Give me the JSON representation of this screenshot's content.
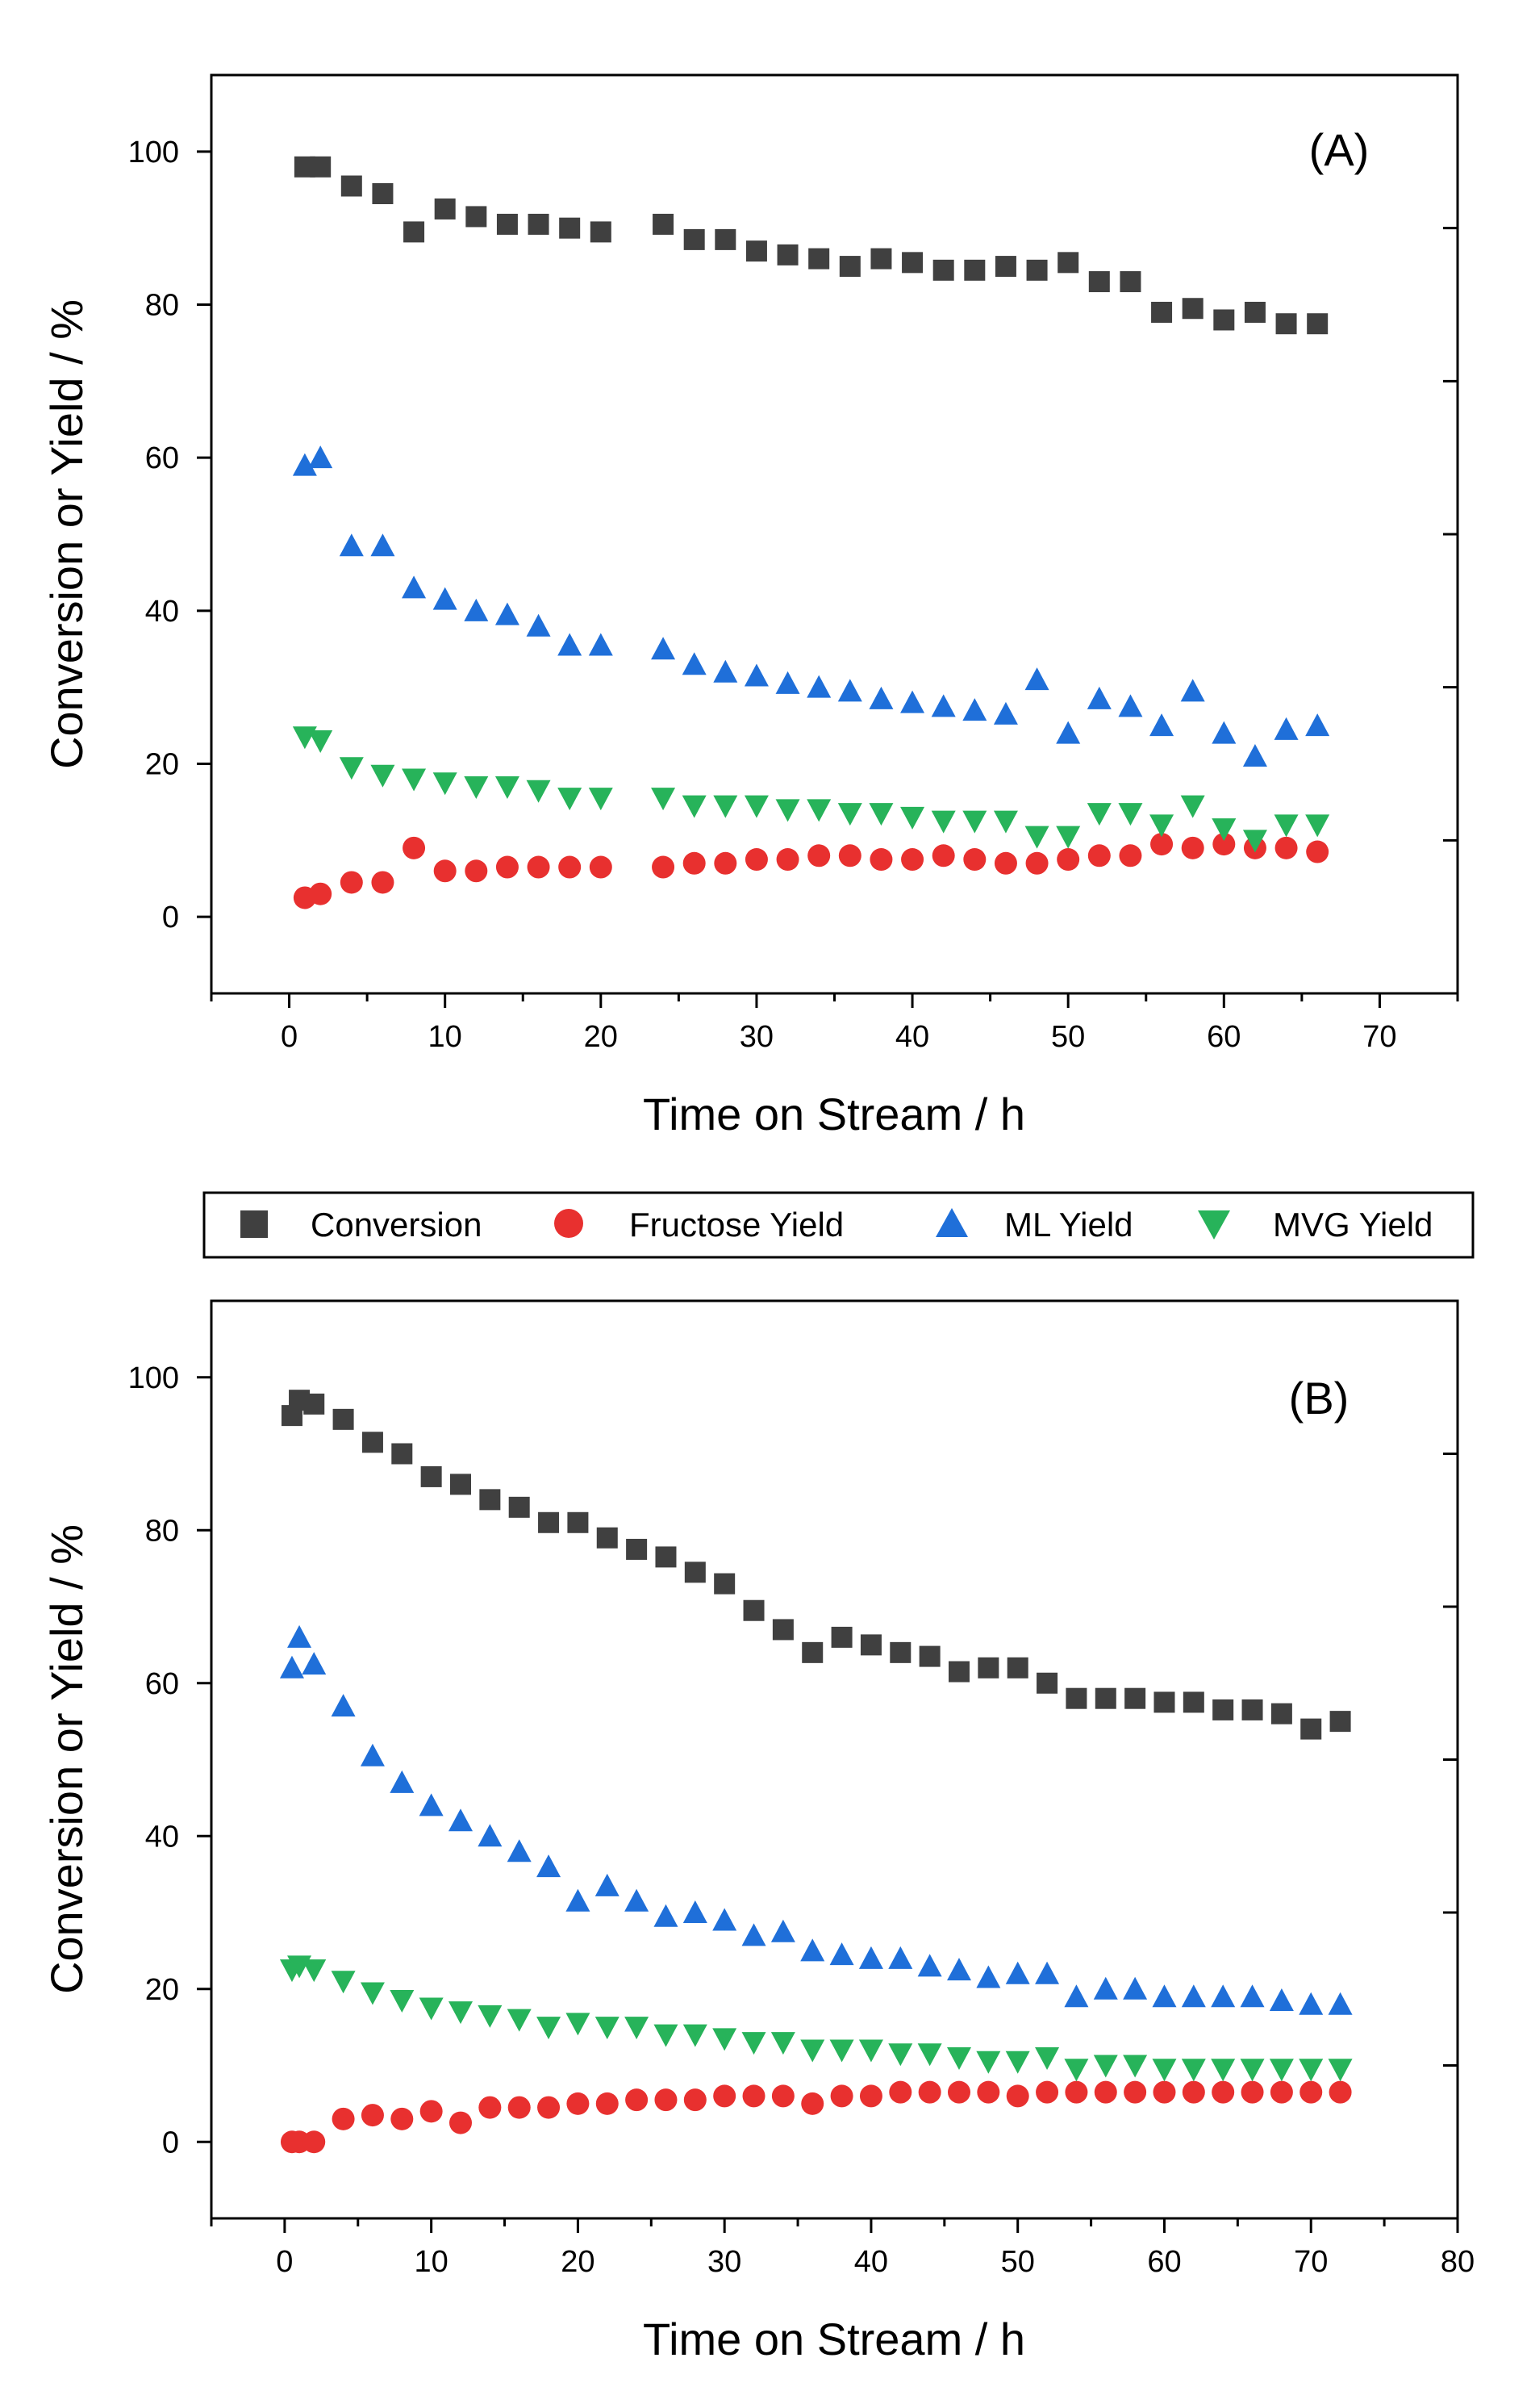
{
  "colors": {
    "conversion": "#404040",
    "fructose": "#e8302f",
    "ml": "#1f6fd9",
    "mvg": "#27b35a"
  },
  "legend": {
    "items": [
      {
        "name": "Conversion",
        "symbol": "square",
        "color": "#404040"
      },
      {
        "name": "Fructose Yield",
        "symbol": "circle",
        "color": "#e8302f"
      },
      {
        "name": "ML Yield",
        "symbol": "triangle-up",
        "color": "#1f6fd9"
      },
      {
        "name": "MVG Yield",
        "symbol": "triangle-down",
        "color": "#27b35a"
      }
    ]
  },
  "chart_data": [
    {
      "type": "scatter",
      "panel_label": "(A)",
      "xlabel": "Time on Stream / h",
      "ylabel": "Conversion or Yield / %",
      "xlim": [
        -5,
        75
      ],
      "ylim": [
        -10,
        110
      ],
      "xticks": [
        0,
        10,
        20,
        30,
        40,
        50,
        60,
        70
      ],
      "yticks": [
        0,
        20,
        40,
        60,
        80,
        100
      ],
      "series": [
        {
          "name": "Conversion",
          "x": [
            1,
            2,
            4,
            6,
            8,
            10,
            12,
            14,
            16,
            18,
            20,
            24,
            26,
            28,
            30,
            32,
            34,
            36,
            38,
            40,
            42,
            44,
            46,
            48,
            50,
            52,
            54,
            56,
            58,
            60,
            62,
            64,
            66
          ],
          "y": [
            98,
            98,
            95.5,
            94.5,
            89.5,
            92.5,
            91.5,
            90.5,
            90.5,
            90,
            89.5,
            90.5,
            88.5,
            88.5,
            87,
            86.5,
            86,
            85,
            86,
            85.5,
            84.5,
            84.5,
            85,
            84.5,
            85.5,
            83,
            83,
            79,
            79.5,
            78,
            79,
            77.5,
            77.5
          ]
        },
        {
          "name": "Fructose Yield",
          "x": [
            1,
            2,
            4,
            6,
            8,
            10,
            12,
            14,
            16,
            18,
            20,
            24,
            26,
            28,
            30,
            32,
            34,
            36,
            38,
            40,
            42,
            44,
            46,
            48,
            50,
            52,
            54,
            56,
            58,
            60,
            62,
            64,
            66
          ],
          "y": [
            2.5,
            3,
            4.5,
            4.5,
            9,
            6,
            6,
            6.5,
            6.5,
            6.5,
            6.5,
            6.5,
            7,
            7,
            7.5,
            7.5,
            8,
            8,
            7.5,
            7.5,
            8,
            7.5,
            7,
            7,
            7.5,
            8,
            8,
            9.5,
            9,
            9.5,
            9,
            9,
            8.5
          ]
        },
        {
          "name": "ML Yield",
          "x": [
            1,
            2,
            4,
            6,
            8,
            10,
            12,
            14,
            16,
            18,
            20,
            24,
            26,
            28,
            30,
            32,
            34,
            36,
            38,
            40,
            42,
            44,
            46,
            48,
            50,
            52,
            54,
            56,
            58,
            60,
            62,
            64,
            66
          ],
          "y": [
            59,
            60,
            48.5,
            48.5,
            43,
            41.5,
            40,
            39.5,
            38,
            35.5,
            35.5,
            35,
            33,
            32,
            31.5,
            30.5,
            30,
            29.5,
            28.5,
            28,
            27.5,
            27,
            26.5,
            31,
            24,
            28.5,
            27.5,
            25,
            29.5,
            24,
            21,
            24.5,
            25
          ]
        },
        {
          "name": "MVG Yield",
          "x": [
            1,
            2,
            4,
            6,
            8,
            10,
            12,
            14,
            16,
            18,
            20,
            24,
            26,
            28,
            30,
            32,
            34,
            36,
            38,
            40,
            42,
            44,
            46,
            48,
            50,
            52,
            54,
            56,
            58,
            60,
            62,
            64,
            66
          ],
          "y": [
            23.5,
            23,
            19.5,
            18.5,
            18,
            17.5,
            17,
            17,
            16.5,
            15.5,
            15.5,
            15.5,
            14.5,
            14.5,
            14.5,
            14,
            14,
            13.5,
            13.5,
            13,
            12.5,
            12.5,
            12.5,
            10.5,
            10.5,
            13.5,
            13.5,
            12,
            14.5,
            11.5,
            10,
            12,
            12
          ]
        }
      ]
    },
    {
      "type": "scatter",
      "panel_label": "(B)",
      "xlabel": "Time on Stream / h",
      "ylabel": "Conversion or Yield / %",
      "xlim": [
        -5,
        80
      ],
      "ylim": [
        -10,
        110
      ],
      "xticks": [
        0,
        10,
        20,
        30,
        40,
        50,
        60,
        70,
        80
      ],
      "yticks": [
        0,
        20,
        40,
        60,
        80,
        100
      ],
      "series": [
        {
          "name": "Conversion",
          "x": [
            0.5,
            1,
            2,
            4,
            6,
            8,
            10,
            12,
            14,
            16,
            18,
            20,
            22,
            24,
            26,
            28,
            30,
            32,
            34,
            36,
            38,
            40,
            42,
            44,
            46,
            48,
            50,
            52,
            54,
            56,
            58,
            60,
            62,
            64,
            66,
            68,
            70,
            72
          ],
          "y": [
            95,
            97,
            96.5,
            94.5,
            91.5,
            90,
            87,
            86,
            84,
            83,
            81,
            81,
            79,
            77.5,
            76.5,
            74.5,
            73,
            69.5,
            67,
            64,
            66,
            65,
            64,
            63.5,
            61.5,
            62,
            62,
            60,
            58,
            58,
            58,
            57.5,
            57.5,
            56.5,
            56.5,
            56,
            54,
            55
          ]
        },
        {
          "name": "Fructose Yield",
          "x": [
            0.5,
            1,
            2,
            4,
            6,
            8,
            10,
            12,
            14,
            16,
            18,
            20,
            22,
            24,
            26,
            28,
            30,
            32,
            34,
            36,
            38,
            40,
            42,
            44,
            46,
            48,
            50,
            52,
            54,
            56,
            58,
            60,
            62,
            64,
            66,
            68,
            70,
            72
          ],
          "y": [
            0,
            0,
            0,
            3,
            3.5,
            3,
            4,
            2.5,
            4.5,
            4.5,
            4.5,
            5,
            5,
            5.5,
            5.5,
            5.5,
            6,
            6,
            6,
            5,
            6,
            6,
            6.5,
            6.5,
            6.5,
            6.5,
            6,
            6.5,
            6.5,
            6.5,
            6.5,
            6.5,
            6.5,
            6.5,
            6.5,
            6.5,
            6.5,
            6.5
          ]
        },
        {
          "name": "ML Yield",
          "x": [
            0.5,
            1,
            2,
            4,
            6,
            8,
            10,
            12,
            14,
            16,
            18,
            20,
            22,
            24,
            26,
            28,
            30,
            32,
            34,
            36,
            38,
            40,
            42,
            44,
            46,
            48,
            50,
            52,
            54,
            56,
            58,
            60,
            62,
            64,
            66,
            68,
            70,
            72
          ],
          "y": [
            62,
            66,
            62.5,
            57,
            50.5,
            47,
            44,
            42,
            40,
            38,
            36,
            31.5,
            33.5,
            31.5,
            29.5,
            30,
            29,
            27,
            27.5,
            25,
            24.5,
            24,
            24,
            23,
            22.5,
            21.5,
            22,
            22,
            19,
            20,
            20,
            19,
            19,
            19,
            19,
            18.5,
            18,
            18
          ]
        },
        {
          "name": "MVG Yield",
          "x": [
            0.5,
            1,
            2,
            4,
            6,
            8,
            10,
            12,
            14,
            16,
            18,
            20,
            22,
            24,
            26,
            28,
            30,
            32,
            34,
            36,
            38,
            40,
            42,
            44,
            46,
            48,
            50,
            52,
            54,
            56,
            58,
            60,
            62,
            64,
            66,
            68,
            70,
            72
          ],
          "y": [
            22.5,
            23,
            22.5,
            21,
            19.5,
            18.5,
            17.5,
            17,
            16.5,
            16,
            15,
            15.5,
            15,
            15,
            14,
            14,
            13.5,
            13,
            13,
            12,
            12,
            12,
            11.5,
            11.5,
            11,
            10.5,
            10.5,
            11,
            9.5,
            10,
            10,
            9.5,
            9.5,
            9.5,
            9.5,
            9.5,
            9.5,
            9.5
          ]
        }
      ]
    }
  ]
}
